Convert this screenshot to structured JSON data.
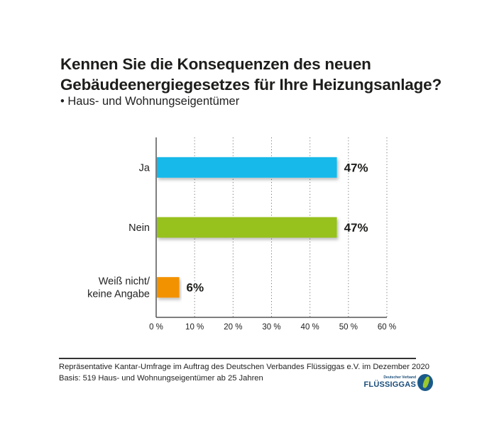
{
  "title_line1": "Kennen Sie die Konsequenzen des neuen",
  "title_line2": "Gebäudeenergiegesetzes für Ihre Heizungsanlage?",
  "subtitle": "• Haus- und Wohnungseigentümer",
  "footer": {
    "line1": "Repräsentative Kantar-Umfrage im Auftrag des Deutschen Verbandes Flüssiggas e.V. im Dezember 2020",
    "line2": "Basis: 519 Haus- und Wohnungseigentümer ab 25 Jahren"
  },
  "logo": {
    "small": "Deutscher Verband",
    "name": "FLÜSSIGGAS"
  },
  "chart_data": {
    "type": "bar",
    "orientation": "horizontal",
    "title": "Kennen Sie die Konsequenzen des neuen Gebäudeenergiegesetzes für Ihre Heizungsanlage?",
    "subtitle": "Haus- und Wohnungseigentümer",
    "categories": [
      [
        "Ja"
      ],
      [
        "Nein"
      ],
      [
        "Weiß nicht/",
        "keine Angabe"
      ]
    ],
    "values": [
      47,
      47,
      6
    ],
    "value_labels": [
      "47%",
      "47%",
      "6%"
    ],
    "colors": [
      "#16b9ea",
      "#97c11f",
      "#f39200"
    ],
    "xlim": [
      0,
      60
    ],
    "xticks": [
      0,
      10,
      20,
      30,
      40,
      50,
      60
    ],
    "xtick_labels": [
      "0 %",
      "10 %",
      "20 %",
      "30 %",
      "40 %",
      "50 %",
      "60 %"
    ],
    "xlabel": "",
    "ylabel": "",
    "grid": "vertical-dotted",
    "legend": "none"
  }
}
